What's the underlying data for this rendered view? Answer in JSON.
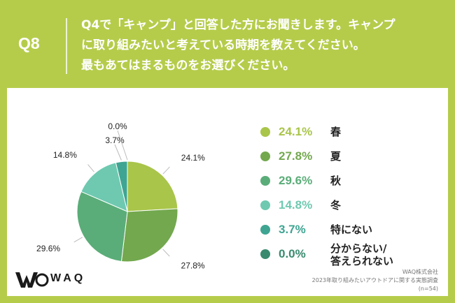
{
  "header": {
    "qnum": "Q8",
    "lines": [
      "Q4で「キャンプ」と回答した方にお聞きします。キャンプ",
      "に取り組みたいと考えている時期を教えてください。",
      "最もあてはまるものをお選びください。"
    ]
  },
  "chart_data": {
    "type": "pie",
    "title": "",
    "categories": [
      "春",
      "夏",
      "秋",
      "冬",
      "特にない",
      "分からない/答えられない"
    ],
    "values": [
      24.1,
      27.8,
      29.6,
      14.8,
      3.7,
      0.0
    ],
    "labels": [
      "24.1%",
      "27.8%",
      "29.6%",
      "14.8%",
      "3.7%",
      "0.0%"
    ],
    "colors": [
      "#a9c54a",
      "#73a84e",
      "#5aad78",
      "#6ec9b0",
      "#3fa592",
      "#3a8a70"
    ],
    "legend": "right",
    "start": "top-clockwise"
  },
  "legend_items": [
    {
      "pct": "24.1%",
      "label": "春",
      "color": "#a9c54a"
    },
    {
      "pct": "27.8%",
      "label": "夏",
      "color": "#73a84e"
    },
    {
      "pct": "29.6%",
      "label": "秋",
      "color": "#5aad78"
    },
    {
      "pct": "14.8%",
      "label": "冬",
      "color": "#6ec9b0"
    },
    {
      "pct": "3.7%",
      "label": "特にない",
      "color": "#3fa592"
    },
    {
      "pct": "0.0%",
      "label": "分からない/\n答えられない",
      "color": "#3a8a70"
    }
  ],
  "logo": {
    "text": "WAQ"
  },
  "source": {
    "company": "WAQ株式会社",
    "survey": "2023年取り組みたいアウトドアに関する実態調査",
    "n": "(n=54)"
  }
}
